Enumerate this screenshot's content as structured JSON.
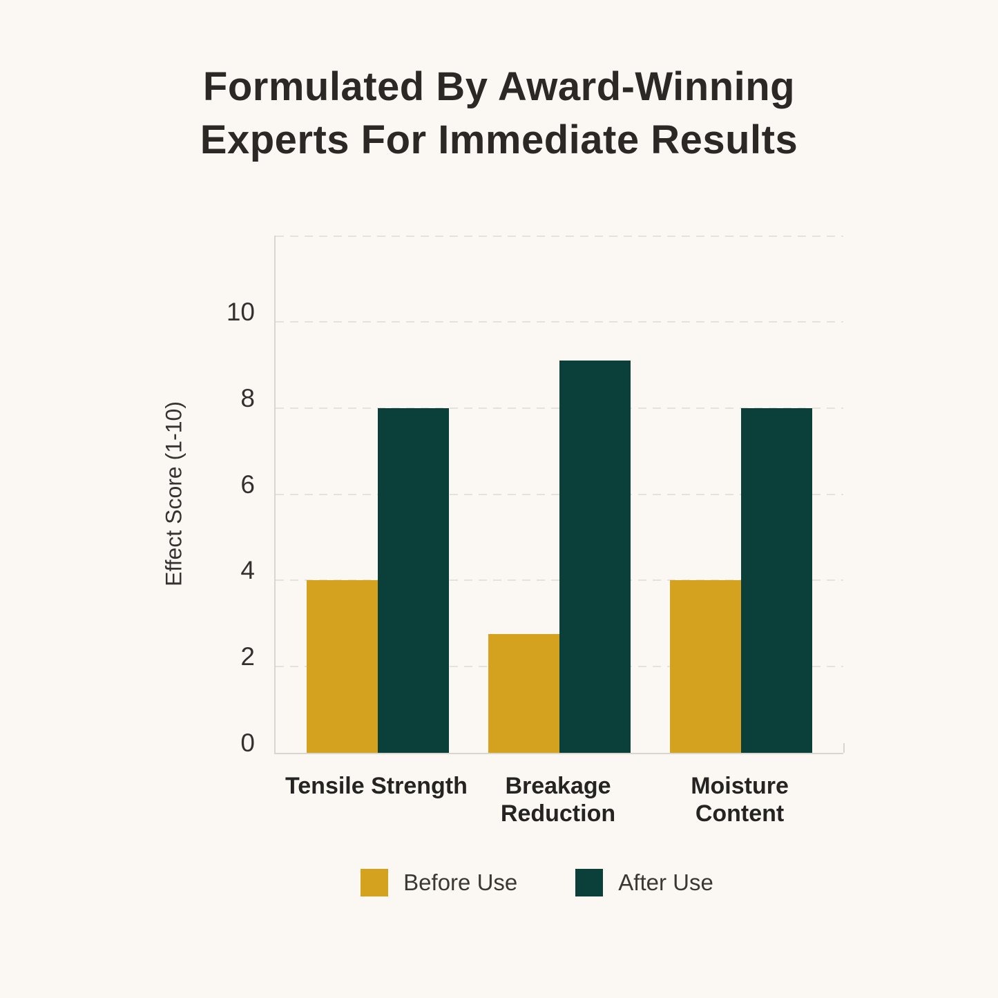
{
  "title": {
    "text": "Formulated By Award-Winning Experts For Immediate Results",
    "color": "#2b2826"
  },
  "chart_data": {
    "type": "bar",
    "title": "Formulated By Award-Winning Experts For Immediate Results",
    "categories": [
      "Tensile Strength",
      "Breakage Reduction",
      "Moisture Content"
    ],
    "series": [
      {
        "name": "Before Use",
        "color": "#d5a21f",
        "values": [
          4,
          2.75,
          4
        ]
      },
      {
        "name": "After Use",
        "color": "#0a4039",
        "values": [
          8,
          9.1,
          8
        ]
      }
    ],
    "xlabel": "",
    "ylabel": "Effect Score (1-10)",
    "ylim": [
      0,
      12
    ],
    "yticks": [
      0,
      2,
      4,
      6,
      8,
      10
    ],
    "grid_values": [
      2,
      4,
      6,
      8,
      10,
      12
    ],
    "grid_style": "dashed",
    "grid_color": "#e6e2db",
    "axis_color": "#d9d5cf",
    "background_color": "#fbf8f4",
    "legend_position": "bottom",
    "legend_entries": [
      "Before Use",
      "After Use"
    ]
  }
}
